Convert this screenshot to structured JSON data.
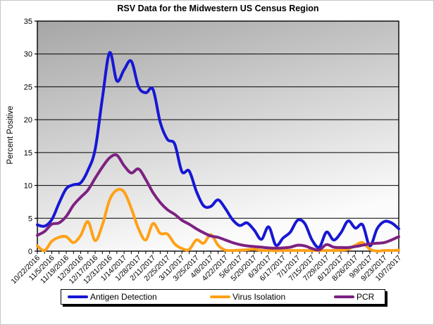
{
  "chart_data": {
    "type": "line",
    "title": "RSV Data for the Midwestern US Census Region",
    "xlabel": "",
    "ylabel": "Percent Positive",
    "ylim": [
      0,
      35
    ],
    "y_ticks": [
      0,
      5,
      10,
      15,
      20,
      25,
      30,
      35
    ],
    "grid": "horizontal",
    "smoothed_lines": true,
    "legend_position": "bottom",
    "plot_bg_gradient_from": "#a6a6a6",
    "plot_bg_gradient_to": "#fbfbfb",
    "gridline_color": "#000000",
    "total_points": 51,
    "label_every_n_points": 2,
    "categories": [
      "10/22/2016",
      "11/5/2016",
      "11/19/2016",
      "12/3/2016",
      "12/17/2016",
      "12/31/2016",
      "1/14/2017",
      "1/28/2017",
      "2/11/2017",
      "2/25/2017",
      "3/11/2017",
      "3/25/2017",
      "4/8/2017",
      "4/22/2017",
      "5/6/2017",
      "5/20/2017",
      "6/3/2017",
      "6/17/2017",
      "7/1/2017",
      "7/15/2017",
      "7/29/2017",
      "8/12/2017",
      "8/26/2017",
      "9/9/2017",
      "9/23/2017",
      "10/7/2017"
    ],
    "series": [
      {
        "name": "Antigen Detection",
        "color": "#1717d4",
        "values": [
          4.0,
          3.8,
          4.8,
          7.3,
          9.5,
          10.1,
          10.4,
          12.3,
          15.5,
          23.3,
          30.2,
          25.9,
          27.6,
          28.9,
          25.0,
          24.1,
          24.6,
          19.6,
          17.0,
          16.3,
          12.1,
          12.2,
          9.1,
          6.9,
          6.8,
          7.8,
          6.5,
          4.8,
          3.9,
          4.3,
          3.2,
          1.8,
          3.7,
          0.9,
          2.0,
          2.9,
          4.7,
          4.2,
          1.7,
          0.6,
          2.9,
          1.7,
          2.8,
          4.6,
          3.5,
          4.0,
          0.8,
          3.4,
          4.5,
          4.3,
          3.4
        ]
      },
      {
        "name": "Virus Isolation",
        "color": "#ffa117",
        "values": [
          0.8,
          0.1,
          1.5,
          2.1,
          2.2,
          1.3,
          2.4,
          4.5,
          1.6,
          4.0,
          7.8,
          9.3,
          9.0,
          6.5,
          3.4,
          1.7,
          4.2,
          2.7,
          2.6,
          1.1,
          0.4,
          0.25,
          1.7,
          1.2,
          2.5,
          0.9,
          0.15,
          0.1,
          0.15,
          0.2,
          0.3,
          0.1,
          0.1,
          0.05,
          0.1,
          0.1,
          0.1,
          0.1,
          0.1,
          0.1,
          0.1,
          0.1,
          0.15,
          0.3,
          0.9,
          1.3,
          0.3,
          0.0,
          0.1,
          0.1,
          0.15
        ]
      },
      {
        "name": "PCR",
        "color": "#7d2182",
        "values": [
          2.4,
          3.0,
          4.1,
          4.3,
          5.3,
          7.0,
          8.2,
          9.3,
          11.1,
          12.8,
          14.2,
          14.6,
          13.0,
          11.9,
          12.5,
          10.9,
          8.9,
          7.4,
          6.3,
          5.6,
          4.7,
          4.1,
          3.4,
          2.8,
          2.3,
          2.1,
          1.7,
          1.3,
          1.0,
          0.8,
          0.7,
          0.6,
          0.5,
          0.45,
          0.5,
          0.6,
          0.9,
          0.8,
          0.4,
          0.2,
          1.0,
          0.6,
          0.55,
          0.55,
          0.7,
          0.9,
          1.1,
          1.2,
          1.3,
          1.7,
          2.2
        ]
      }
    ]
  }
}
